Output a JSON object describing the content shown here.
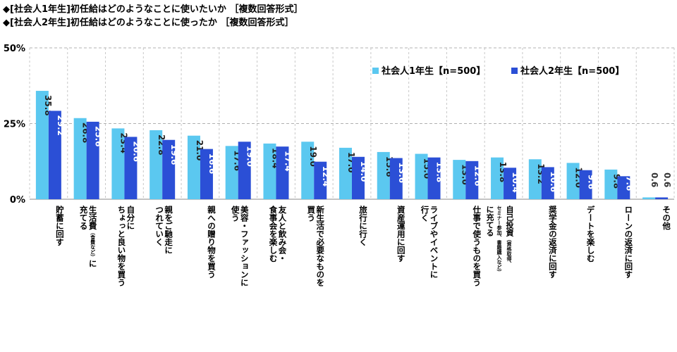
{
  "titles": [
    "◆[社会人1年生]初任給はどのようなことに使いたいか ［複数回答形式］",
    "◆[社会人2年生]初任給はどのようなことに使ったか ［複数回答形式］"
  ],
  "colors": {
    "series1": "#5bc8f0",
    "series2": "#2b4fd6",
    "grid": "#b0b0b0"
  },
  "chart_data": {
    "type": "bar",
    "ylim": [
      0,
      50
    ],
    "yticks": [
      "0%",
      "25%",
      "50%"
    ],
    "ytick_values": [
      0,
      25,
      50
    ],
    "legend_position": "top-right",
    "categories": [
      [
        "貯蓄に回す"
      ],
      [
        "生活費",
        "（食費など）",
        "に",
        "充てる"
      ],
      [
        "自分に",
        "ちょっと良い物を買う"
      ],
      [
        "親をご馳走に",
        "つれていく"
      ],
      [
        "親への贈り物を買う"
      ],
      [
        "美容・ファッションに",
        "使う"
      ],
      [
        "友人と飲み会・",
        "食事会を楽しむ"
      ],
      [
        "新生活で必要なものを",
        "買う"
      ],
      [
        "旅行に行く"
      ],
      [
        "資産運用に回す"
      ],
      [
        "ライブやイベントに",
        "行く"
      ],
      [
        "仕事で使うものを買う"
      ],
      [
        "自己投資",
        "（資格取得、",
        "セミナー参加、書籍購入など）",
        "に充てる"
      ],
      [
        "奨学金の返済に回す"
      ],
      [
        "デートを楽しむ"
      ],
      [
        "ローンの返済に回す"
      ],
      [
        "その他"
      ]
    ],
    "series": [
      {
        "name": "社会人1年生【n=500】",
        "values": [
          35.8,
          26.8,
          23.4,
          22.8,
          21.0,
          17.6,
          18.4,
          19.0,
          17.0,
          15.6,
          15.0,
          13.0,
          13.8,
          13.2,
          12.0,
          9.8,
          0.6
        ],
        "labels": [
          "35.8",
          "26.8",
          "23.4",
          "22.8",
          "21.0",
          "17.6",
          "18.4",
          "19.0",
          "17.0",
          "15.6",
          "15.0",
          "13.0",
          "13.8",
          "13.2",
          "12.0",
          "9.8",
          "0.6"
        ]
      },
      {
        "name": "社会人2年生【n=500】",
        "values": [
          29.2,
          25.6,
          20.6,
          19.6,
          16.6,
          19.0,
          17.4,
          12.4,
          14.0,
          13.6,
          13.8,
          12.6,
          10.4,
          10.6,
          9.6,
          7.6,
          0.6
        ],
        "labels": [
          "29.2",
          "25.6",
          "20.6",
          "19.6",
          "16.6",
          "19.0",
          "17.4",
          "12.4",
          "14.0",
          "13.6",
          "13.8",
          "12.6",
          "10.4",
          "10.6",
          "9.6",
          "7.6",
          "0.6"
        ]
      }
    ]
  }
}
